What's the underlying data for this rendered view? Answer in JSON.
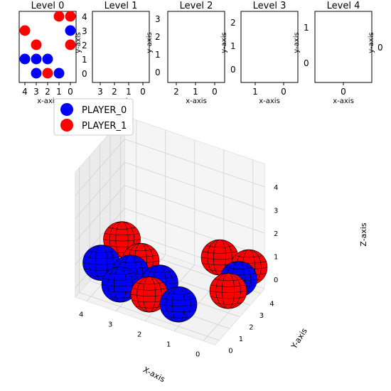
{
  "chart_data": [
    {
      "type": "scatter",
      "title": "Level 0",
      "xlabel": "x-axis",
      "ylabel": "y-axis",
      "x_ticks": [
        "4",
        "3",
        "2",
        "1",
        "0"
      ],
      "y_ticks": [
        "0",
        "1",
        "2",
        "3",
        "4"
      ],
      "x_inverted": true,
      "y_tick_side": "right",
      "series": [
        {
          "name": "PLAYER_0",
          "color": "#0000ff",
          "points": [
            [
              4,
              1
            ],
            [
              3,
              1
            ],
            [
              2,
              1
            ],
            [
              3,
              0
            ],
            [
              1,
              0
            ],
            [
              0,
              3
            ]
          ]
        },
        {
          "name": "PLAYER_1",
          "color": "#ff0000",
          "points": [
            [
              4,
              3
            ],
            [
              3,
              2
            ],
            [
              2,
              0
            ],
            [
              1,
              4
            ],
            [
              0,
              4
            ],
            [
              0,
              2
            ]
          ]
        }
      ]
    },
    {
      "type": "scatter",
      "title": "Level 1",
      "xlabel": "x-axis",
      "ylabel": "y-axis",
      "x_ticks": [
        "3",
        "2",
        "1",
        "0"
      ],
      "y_ticks": [
        "0",
        "1",
        "2",
        "3"
      ]
    },
    {
      "type": "scatter",
      "title": "Level 2",
      "xlabel": "x-axis",
      "ylabel": "y-axis",
      "x_ticks": [
        "2",
        "1",
        "0"
      ],
      "y_ticks": [
        "0",
        "1",
        "2"
      ]
    },
    {
      "type": "scatter",
      "title": "Level 3",
      "xlabel": "x-axis",
      "ylabel": "y-axis",
      "x_ticks": [
        "1",
        "0"
      ],
      "y_ticks": [
        "0",
        "1"
      ]
    },
    {
      "type": "scatter",
      "title": "Level 4",
      "xlabel": "x-axis",
      "ylabel": "y-axis",
      "x_ticks": [
        "0"
      ],
      "y_ticks": [
        "0"
      ]
    },
    {
      "type": "scatter3d",
      "xlabel": "X-axis",
      "ylabel": "Y-axis",
      "zlabel": "Z-axis",
      "x_ticks": [
        "0",
        "1",
        "2",
        "3",
        "4"
      ],
      "y_ticks": [
        "0",
        "1",
        "2",
        "3",
        "4"
      ],
      "z_ticks": [
        "0",
        "1",
        "2",
        "3",
        "4"
      ],
      "legend": {
        "placement": "upper-left",
        "entries": [
          {
            "name": "PLAYER_0",
            "color": "#0000ff"
          },
          {
            "name": "PLAYER_1",
            "color": "#ff0000"
          }
        ]
      },
      "series": [
        {
          "name": "PLAYER_0",
          "color": "#0000ff",
          "points": [
            [
              4,
              1,
              0
            ],
            [
              3,
              1,
              0
            ],
            [
              2,
              1,
              0
            ],
            [
              3,
              0,
              0
            ],
            [
              1,
              0,
              0
            ],
            [
              0,
              3,
              0
            ]
          ]
        },
        {
          "name": "PLAYER_1",
          "color": "#ff0000",
          "points": [
            [
              4,
              3,
              0
            ],
            [
              3,
              2,
              0
            ],
            [
              2,
              0,
              0
            ],
            [
              1,
              4,
              0
            ],
            [
              0,
              4,
              0
            ],
            [
              0,
              2,
              0
            ]
          ]
        }
      ]
    }
  ]
}
